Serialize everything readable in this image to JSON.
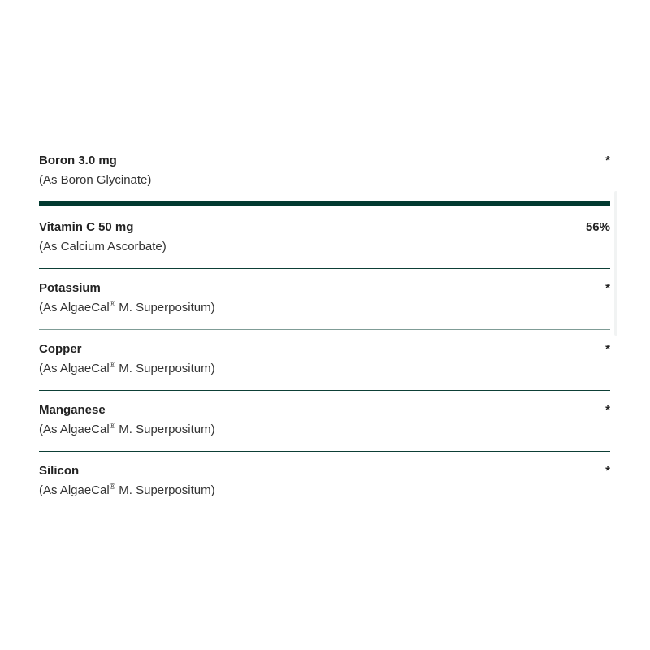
{
  "rows": [
    {
      "name": "Boron 3.0 mg",
      "source": "(As Boron Glycinate)",
      "value": "*"
    },
    {
      "name": "Vitamin C 50 mg",
      "source": "(As Calcium Ascorbate)",
      "value": "56%"
    },
    {
      "name": "Potassium",
      "source_pre": "(As AlgaeCal",
      "reg": "®",
      "source_post": " M. Superpositum)",
      "value": "*"
    },
    {
      "name": "Copper",
      "source_pre": "(As AlgaeCal",
      "reg": "®",
      "source_post": " M. Superpositum)",
      "value": "*"
    },
    {
      "name": "Manganese",
      "source_pre": "(As AlgaeCal",
      "reg": "®",
      "source_post": " M. Superpositum)",
      "value": "*"
    },
    {
      "name": "Silicon",
      "source_pre": "(As AlgaeCal",
      "reg": "®",
      "source_post": " M. Superpositum)",
      "value": "*"
    }
  ],
  "colors": {
    "divider": "#023a30",
    "text": "#222222"
  }
}
